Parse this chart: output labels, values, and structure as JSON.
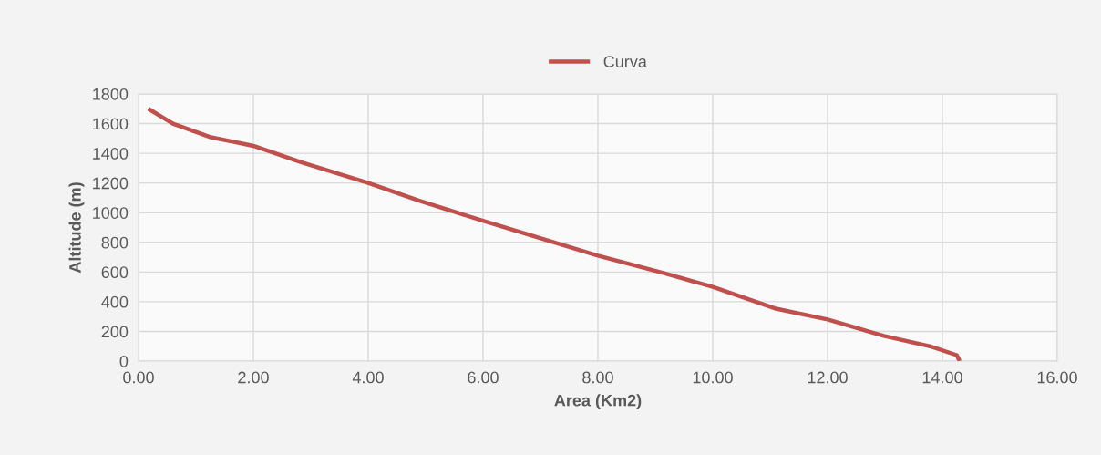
{
  "chart_data": {
    "type": "line",
    "xlabel": "Area (Km2)",
    "ylabel": "Altitude (m)",
    "x": [
      0.17,
      0.6,
      1.24,
      2.0,
      2.83,
      4.0,
      4.89,
      6.0,
      7.11,
      8.0,
      9.17,
      10.0,
      11.08,
      12.0,
      12.98,
      13.78,
      14.25,
      14.3
    ],
    "series": [
      {
        "name": "Curva",
        "color": "#c0504d",
        "values": [
          1700,
          1600,
          1510,
          1450,
          1340,
          1200,
          1080,
          945,
          815,
          710,
          590,
          500,
          355,
          280,
          170,
          100,
          40,
          0
        ]
      }
    ],
    "xlim": [
      0,
      16
    ],
    "xticks": [
      {
        "value": 0,
        "label": "0.00"
      },
      {
        "value": 2,
        "label": "2.00"
      },
      {
        "value": 4,
        "label": "4.00"
      },
      {
        "value": 6,
        "label": "6.00"
      },
      {
        "value": 8,
        "label": "8.00"
      },
      {
        "value": 10,
        "label": "10.00"
      },
      {
        "value": 12,
        "label": "12.00"
      },
      {
        "value": 14,
        "label": "14.00"
      },
      {
        "value": 16,
        "label": "16.00"
      }
    ],
    "ylim": [
      0,
      1800
    ],
    "yticks": [
      0,
      200,
      400,
      600,
      800,
      1000,
      1200,
      1400,
      1600,
      1800
    ],
    "grid": true,
    "legend": "top",
    "marker": "none",
    "line_style": "solid"
  }
}
